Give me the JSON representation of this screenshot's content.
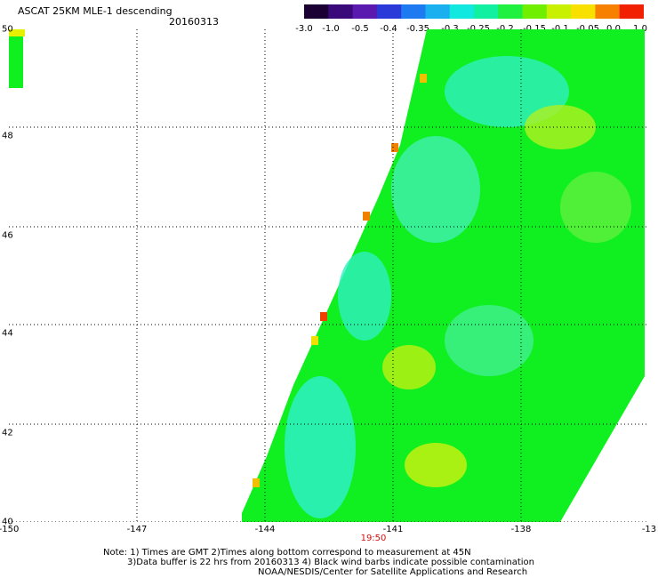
{
  "header": {
    "title": "ASCAT 25KM MLE-1 descending",
    "date": "20160313"
  },
  "legend": {
    "ticks": [
      "-3.0",
      "-1.0",
      "-0.5",
      "-0.4",
      "-0.35",
      "-0.3",
      "-0.25",
      "-0.2",
      "-0.15",
      "-0.1",
      "-0.05",
      "0.0",
      "1.0"
    ],
    "colors": [
      "#1a0033",
      "#3a0a7a",
      "#5a1ab0",
      "#2a3ad8",
      "#1e7af0",
      "#1ab0f0",
      "#10e8e0",
      "#10f0a0",
      "#20f040",
      "#70f000",
      "#c8f000",
      "#f8e000",
      "#f88000",
      "#f02000"
    ]
  },
  "map": {
    "x_labels": [
      "-150",
      "-147",
      "-144",
      "-141",
      "-138",
      "-13"
    ],
    "y_labels": [
      "50",
      "48",
      "46",
      "44",
      "42",
      "40"
    ],
    "time_label": "19:50",
    "swath_color": "#10f020"
  },
  "notes": {
    "line1": "Note: 1) Times are GMT 2)Times along bottom correspond to measurement at 45N",
    "line2": "3)Data buffer is 22 hrs from 20160313 4) Black wind barbs indicate possible contamination",
    "line3": "NOAA/NESDIS/Center for Satellite Applications and Research"
  }
}
